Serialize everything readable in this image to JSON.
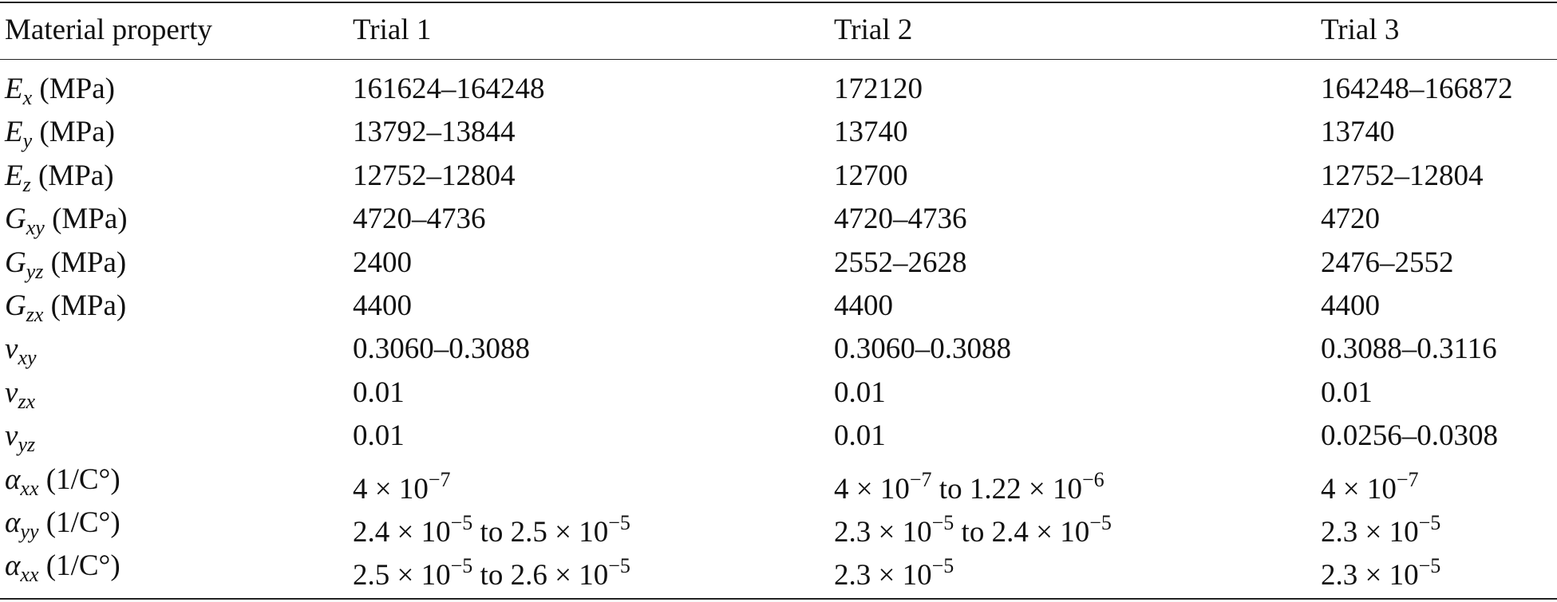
{
  "table": {
    "header": [
      "Material property",
      "Trial 1",
      "Trial 2",
      "Trial 3"
    ],
    "rows": [
      [
        [
          {
            "italic": "E"
          },
          {
            "sub": "x"
          },
          {
            "text": " (MPa)"
          }
        ],
        "161624–164248",
        "172120",
        "164248–166872"
      ],
      [
        [
          {
            "italic": "E"
          },
          {
            "sub": "y"
          },
          {
            "text": " (MPa)"
          }
        ],
        "13792–13844",
        "13740",
        "13740"
      ],
      [
        [
          {
            "italic": "E"
          },
          {
            "sub": "z"
          },
          {
            "text": " (MPa)"
          }
        ],
        "12752–12804",
        "12700",
        "12752–12804"
      ],
      [
        [
          {
            "italic": "G"
          },
          {
            "sub": "xy"
          },
          {
            "text": " (MPa)"
          }
        ],
        "4720–4736",
        "4720–4736",
        "4720"
      ],
      [
        [
          {
            "italic": "G"
          },
          {
            "sub": "yz"
          },
          {
            "text": " (MPa)"
          }
        ],
        "2400",
        "2552–2628",
        "2476–2552"
      ],
      [
        [
          {
            "italic": "G"
          },
          {
            "sub": "zx"
          },
          {
            "text": " (MPa)"
          }
        ],
        "4400",
        "4400",
        "4400"
      ],
      [
        [
          {
            "italic": "v"
          },
          {
            "sub": "xy"
          }
        ],
        "0.3060–0.3088",
        "0.3060–0.3088",
        "0.3088–0.3116"
      ],
      [
        [
          {
            "italic": "v"
          },
          {
            "sub": "zx"
          }
        ],
        "0.01",
        "0.01",
        "0.01"
      ],
      [
        [
          {
            "italic": "v"
          },
          {
            "sub": "yz"
          }
        ],
        "0.01",
        "0.01",
        "0.0256–0.0308"
      ],
      [
        [
          {
            "italic": "α"
          },
          {
            "sub": "xx"
          },
          {
            "text": " (1/C°)"
          }
        ],
        [
          {
            "text": "4 × 10"
          },
          {
            "sup": "−7"
          }
        ],
        [
          {
            "text": "4 × 10"
          },
          {
            "sup": "−7"
          },
          {
            "text": " to 1.22 × 10"
          },
          {
            "sup": "−6"
          }
        ],
        [
          {
            "text": "4 × 10"
          },
          {
            "sup": "−7"
          }
        ]
      ],
      [
        [
          {
            "italic": "α"
          },
          {
            "sub": "yy"
          },
          {
            "text": " (1/C°)"
          }
        ],
        [
          {
            "text": "2.4 × 10"
          },
          {
            "sup": "−5"
          },
          {
            "text": " to 2.5 × 10"
          },
          {
            "sup": "−5"
          }
        ],
        [
          {
            "text": "2.3 × 10"
          },
          {
            "sup": "−5"
          },
          {
            "text": " to 2.4 × 10"
          },
          {
            "sup": "−5"
          }
        ],
        [
          {
            "text": "2.3 × 10"
          },
          {
            "sup": "−5"
          }
        ]
      ],
      [
        [
          {
            "italic": "α"
          },
          {
            "sub": "xx"
          },
          {
            "text": " (1/C°)"
          }
        ],
        [
          {
            "text": "2.5 × 10"
          },
          {
            "sup": "−5"
          },
          {
            "text": " to 2.6 × 10"
          },
          {
            "sup": "−5"
          }
        ],
        [
          {
            "text": "2.3 × 10"
          },
          {
            "sup": "−5"
          }
        ],
        [
          {
            "text": "2.3 × 10"
          },
          {
            "sup": "−5"
          }
        ]
      ]
    ]
  }
}
